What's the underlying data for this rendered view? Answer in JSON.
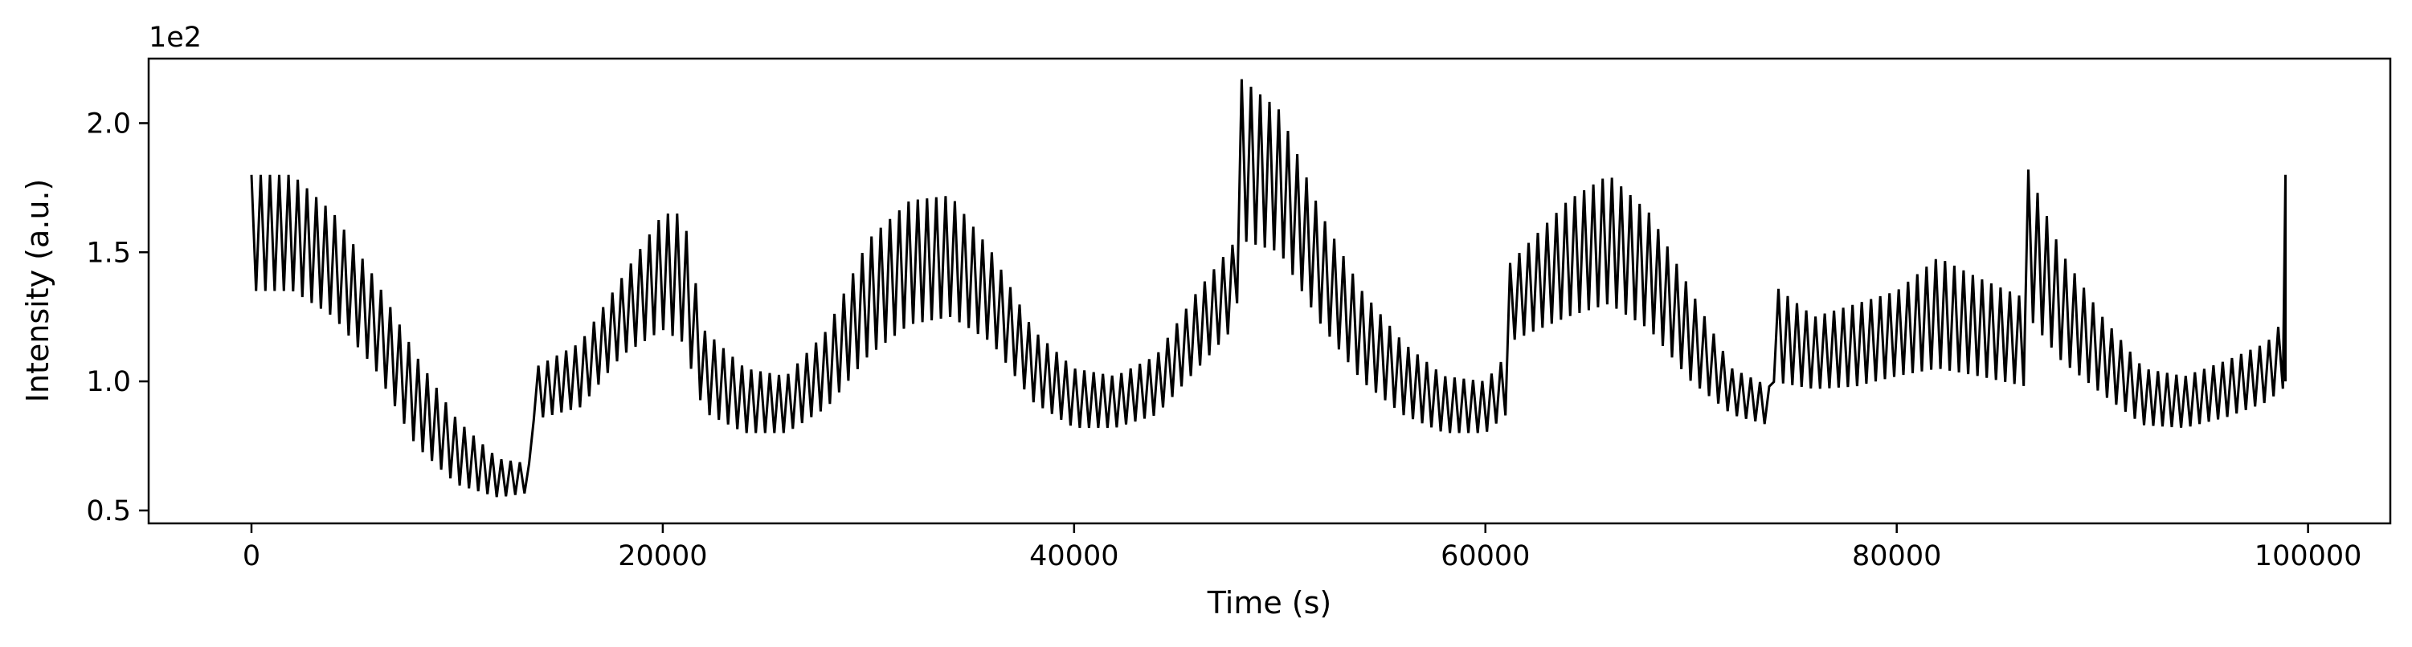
{
  "chart_data": {
    "type": "line",
    "title": "",
    "xlabel": "Time (s)",
    "ylabel": "Intensity (a.u.)",
    "y_offset_label": "1e2",
    "xlim": [
      -5000,
      104000
    ],
    "ylim": [
      45,
      225
    ],
    "x_ticks": [
      0,
      20000,
      40000,
      60000,
      80000,
      100000
    ],
    "x_tick_labels": [
      "0",
      "20000",
      "40000",
      "60000",
      "80000",
      "100000"
    ],
    "y_ticks": [
      50,
      100,
      150,
      200
    ],
    "y_tick_labels": [
      "0.5",
      "1.0",
      "1.5",
      "2.0"
    ],
    "grid": false,
    "line_color": "#000000",
    "oscillation_period_s": 450,
    "series": [
      {
        "envelope": {
          "x": [
            0,
            2000,
            4000,
            6000,
            8000,
            10000,
            12000,
            13600,
            13700,
            16000,
            18000,
            20000,
            21000,
            22000,
            24000,
            26000,
            28000,
            30000,
            32000,
            34000,
            36000,
            38000,
            40000,
            42000,
            44000,
            46000,
            47900,
            48000,
            50000,
            52000,
            54000,
            56000,
            58000,
            60000,
            61000,
            61100,
            64000,
            66000,
            68000,
            70000,
            72000,
            73800,
            73900,
            76000,
            78000,
            80000,
            82000,
            84000,
            86300,
            86400,
            88000,
            90000,
            92000,
            94000,
            96000,
            98000,
            98900
          ],
          "upper": [
            180,
            180,
            165,
            140,
            110,
            85,
            70,
            68,
            105,
            115,
            140,
            165,
            165,
            120,
            105,
            102,
            120,
            155,
            170,
            172,
            150,
            120,
            105,
            102,
            110,
            135,
            155,
            218,
            205,
            165,
            135,
            115,
            102,
            100,
            110,
            145,
            170,
            180,
            165,
            135,
            105,
            98,
            138,
            125,
            130,
            135,
            148,
            140,
            132,
            182,
            150,
            125,
            105,
            102,
            108,
            115,
            125
          ],
          "lower": [
            135,
            135,
            125,
            105,
            75,
            60,
            55,
            57,
            85,
            90,
            110,
            120,
            115,
            88,
            80,
            80,
            90,
            110,
            122,
            125,
            115,
            92,
            82,
            82,
            87,
            105,
            122,
            155,
            150,
            122,
            100,
            87,
            80,
            80,
            87,
            115,
            125,
            130,
            120,
            100,
            87,
            83,
            100,
            97,
            98,
            102,
            105,
            102,
            98,
            125,
            108,
            95,
            83,
            82,
            86,
            92,
            98
          ]
        }
      }
    ]
  }
}
